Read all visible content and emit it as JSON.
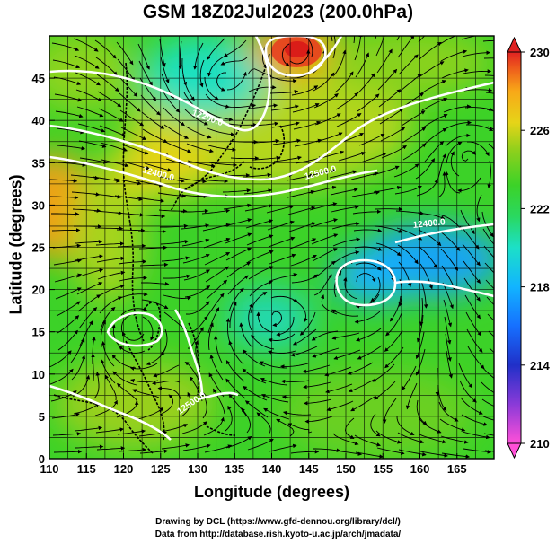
{
  "title": "GSM 18Z02Jul2023 (200.0hPa)",
  "x_axis": {
    "label": "Longitude (degrees)",
    "range": [
      110,
      170
    ],
    "ticks": [
      110,
      115,
      120,
      125,
      130,
      135,
      140,
      145,
      150,
      155,
      160,
      165
    ]
  },
  "y_axis": {
    "label": "Latitude (degrees)",
    "range": [
      0,
      50
    ],
    "ticks": [
      0,
      5,
      10,
      15,
      20,
      25,
      30,
      35,
      40,
      45
    ]
  },
  "colorbar": {
    "range": [
      210,
      230
    ],
    "ticks": [
      210,
      214,
      218,
      222,
      226,
      230
    ],
    "colors": [
      "#ff50d8",
      "#8a3ad8",
      "#2030c8",
      "#1670ff",
      "#12b4ff",
      "#1ce0c8",
      "#2ad860",
      "#3cd228",
      "#90d01c",
      "#e6d418",
      "#f8a818",
      "#ee5a1c",
      "#e02222"
    ]
  },
  "contour_labels": [
    "12200.0",
    "12400.0",
    "12500.0",
    "12400.0",
    "12500.0"
  ],
  "credits": [
    "Drawing by DCL (https://www.gfd-dennou.org/library/dcl/)",
    "Data from http://database.rish.kyoto-u.ac.jp/arch/jmadata/"
  ]
}
